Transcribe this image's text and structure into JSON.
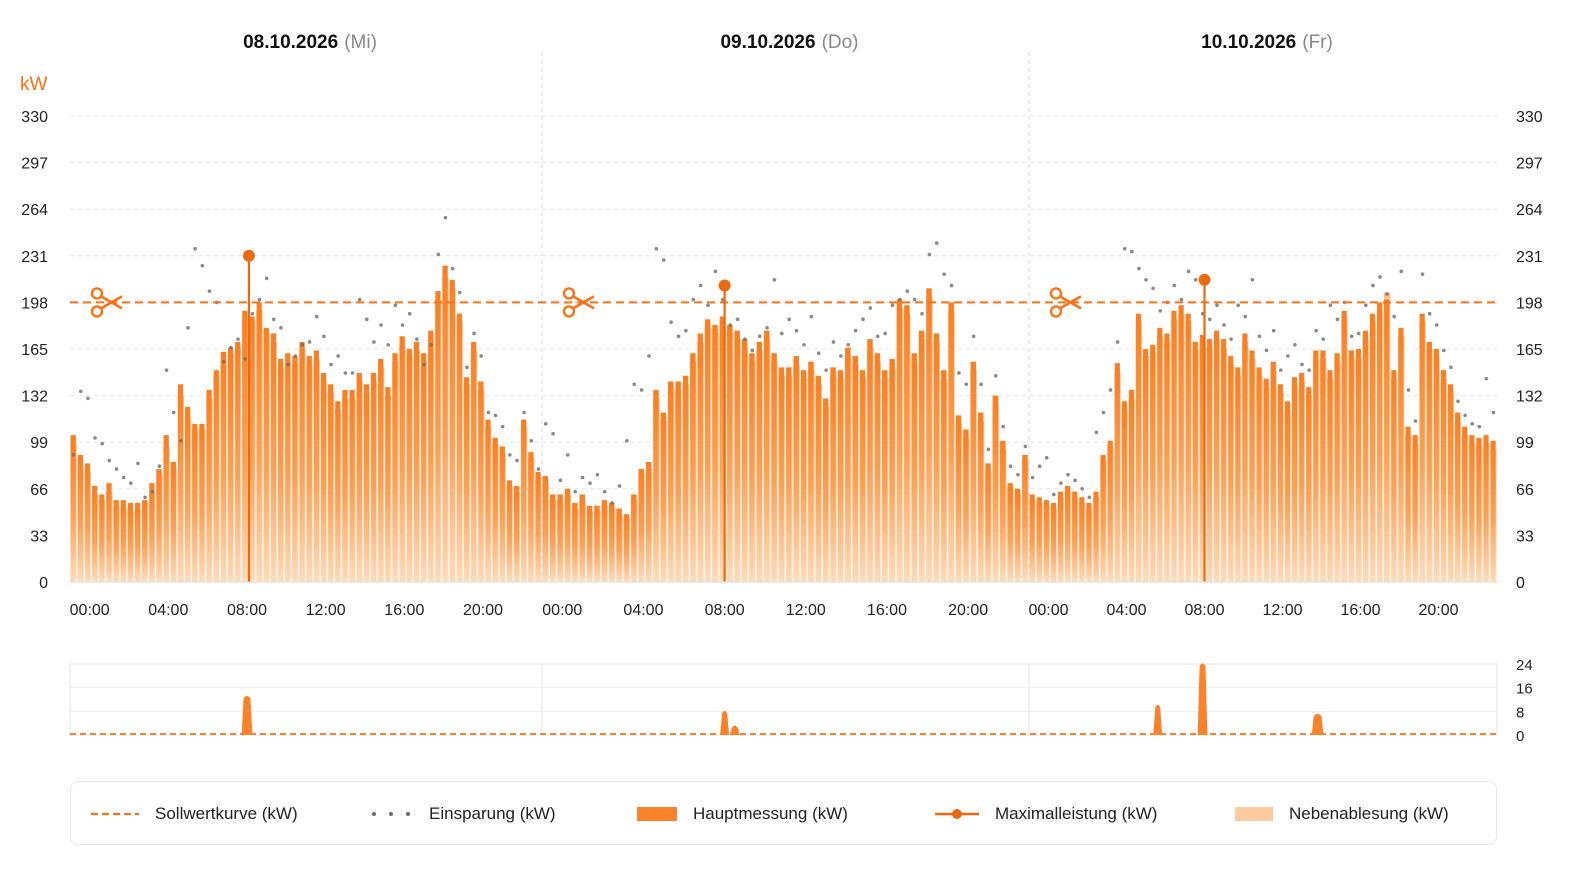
{
  "chart_data": {
    "type": "bar",
    "unit_label": "kW",
    "ylim": [
      0,
      330
    ],
    "y_ticks": [
      0,
      33,
      66,
      99,
      132,
      165,
      198,
      231,
      264,
      297,
      330
    ],
    "x_tick_labels": [
      "00:00",
      "04:00",
      "08:00",
      "12:00",
      "16:00",
      "20:00"
    ],
    "days": [
      {
        "date": "08.10.2026",
        "weekday": "(Mi)",
        "hauptmessung": [
          104,
          90,
          84,
          68,
          62,
          70,
          58,
          58,
          56,
          56,
          58,
          70,
          80,
          104,
          85,
          140,
          124,
          112,
          112,
          136,
          150,
          163,
          166,
          170,
          192,
          188,
          198,
          180,
          176,
          158,
          162,
          160,
          170,
          160,
          164,
          148,
          140,
          128,
          136,
          136,
          148,
          140,
          148,
          158,
          138,
          162,
          174,
          165,
          170,
          162,
          178,
          206,
          224,
          214,
          190,
          145,
          170,
          142,
          115,
          102,
          96,
          72,
          68,
          115,
          92,
          78
        ],
        "nebenablesung": [
          98,
          82,
          78,
          62,
          58,
          64,
          54,
          52,
          50,
          52,
          56,
          64,
          76,
          96,
          80,
          132,
          116,
          108,
          108,
          130,
          146,
          158,
          162,
          166,
          186,
          184,
          192,
          176,
          170,
          152,
          156,
          154,
          164,
          154,
          158,
          142,
          134,
          122,
          130,
          130,
          142,
          134,
          142,
          152,
          132,
          156,
          168,
          160,
          164,
          156,
          172,
          200,
          216,
          208,
          184,
          140,
          164,
          136,
          110,
          98,
          92,
          68,
          64,
          110,
          88,
          74
        ],
        "einsparung": [
          90,
          135,
          130,
          102,
          98,
          86,
          80,
          74,
          70,
          84,
          60,
          64,
          82,
          150,
          120,
          100,
          180,
          236,
          224,
          206,
          198,
          156,
          166,
          172,
          158,
          190,
          200,
          215,
          186,
          180,
          154,
          160,
          168,
          170,
          188,
          174,
          154,
          160,
          148,
          148,
          200,
          186,
          170,
          182,
          168,
          196,
          182,
          190,
          172,
          154,
          168,
          232,
          258,
          222,
          205,
          152,
          176,
          160,
          120,
          118,
          110,
          90,
          86,
          120,
          100,
          80
        ],
        "max": {
          "hour": 8.1,
          "value": 231
        }
      },
      {
        "date": "09.10.2026",
        "weekday": "(Do)",
        "hauptmessung": [
          75,
          62,
          62,
          66,
          56,
          62,
          54,
          54,
          58,
          56,
          52,
          48,
          62,
          80,
          85,
          136,
          120,
          142,
          142,
          146,
          162,
          176,
          186,
          182,
          188,
          182,
          178,
          172,
          162,
          170,
          178,
          162,
          152,
          152,
          160,
          150,
          156,
          146,
          130,
          152,
          150,
          166,
          160,
          150,
          172,
          162,
          150,
          158,
          200,
          196,
          162,
          178,
          208,
          176,
          150,
          198,
          118,
          108,
          156,
          120,
          84,
          132,
          100,
          70,
          66,
          90
        ],
        "nebenablesung": [
          70,
          58,
          58,
          62,
          52,
          58,
          50,
          50,
          54,
          52,
          48,
          45,
          58,
          76,
          80,
          130,
          114,
          136,
          136,
          140,
          156,
          170,
          180,
          176,
          182,
          176,
          172,
          166,
          156,
          164,
          172,
          156,
          146,
          146,
          154,
          144,
          150,
          140,
          124,
          146,
          144,
          160,
          154,
          144,
          166,
          156,
          144,
          152,
          194,
          190,
          156,
          172,
          202,
          170,
          144,
          192,
          112,
          102,
          150,
          114,
          78,
          126,
          94,
          66,
          62,
          86
        ],
        "einsparung": [
          112,
          105,
          72,
          90,
          64,
          74,
          70,
          76,
          64,
          56,
          68,
          100,
          140,
          136,
          160,
          236,
          228,
          184,
          174,
          178,
          200,
          210,
          196,
          220,
          200,
          182,
          186,
          172,
          164,
          174,
          180,
          214,
          176,
          186,
          178,
          168,
          188,
          162,
          150,
          170,
          160,
          168,
          178,
          186,
          194,
          174,
          176,
          196,
          200,
          206,
          200,
          190,
          232,
          240,
          218,
          210,
          148,
          140,
          174,
          140,
          94,
          146,
          110,
          82,
          76,
          96
        ],
        "max": {
          "hour": 8.0,
          "value": 210
        }
      },
      {
        "date": "10.10.2026",
        "weekday": "(Fr)",
        "hauptmessung": [
          62,
          60,
          58,
          56,
          64,
          68,
          64,
          60,
          56,
          64,
          90,
          100,
          155,
          128,
          136,
          190,
          165,
          168,
          180,
          176,
          192,
          196,
          190,
          170,
          175,
          172,
          178,
          172,
          160,
          152,
          176,
          164,
          152,
          144,
          156,
          140,
          128,
          145,
          148,
          138,
          164,
          164,
          150,
          162,
          192,
          164,
          165,
          178,
          190,
          198,
          200,
          150,
          180,
          110,
          104,
          190,
          170,
          165,
          150,
          140,
          120,
          110,
          104,
          102,
          104,
          100
        ],
        "nebenablesung": [
          58,
          56,
          54,
          52,
          60,
          64,
          60,
          56,
          52,
          60,
          86,
          96,
          148,
          122,
          130,
          184,
          160,
          162,
          174,
          170,
          186,
          190,
          184,
          164,
          169,
          166,
          172,
          166,
          154,
          146,
          170,
          158,
          146,
          138,
          150,
          134,
          122,
          139,
          142,
          132,
          158,
          158,
          144,
          156,
          186,
          158,
          159,
          172,
          184,
          192,
          205,
          144,
          174,
          104,
          98,
          184,
          164,
          159,
          144,
          134,
          114,
          104,
          98,
          96,
          98,
          94
        ],
        "einsparung": [
          74,
          82,
          88,
          62,
          70,
          76,
          72,
          66,
          60,
          106,
          120,
          136,
          170,
          236,
          234,
          222,
          214,
          208,
          192,
          198,
          210,
          200,
          220,
          214,
          190,
          186,
          196,
          182,
          172,
          196,
          188,
          214,
          174,
          164,
          178,
          150,
          160,
          168,
          154,
          150,
          178,
          172,
          196,
          186,
          198,
          174,
          176,
          196,
          210,
          216,
          204,
          188,
          220,
          136,
          114,
          218,
          190,
          182,
          164,
          152,
          128,
          118,
          112,
          110,
          144,
          120
        ],
        "max": {
          "hour": 8.0,
          "value": 214
        }
      }
    ],
    "sollwertkurve": 198,
    "sub_chart": {
      "ylim": [
        0,
        24
      ],
      "y_ticks": [
        0,
        8,
        16,
        24
      ],
      "peaks": [
        {
          "day": 0,
          "hour": 8.0,
          "width": 0.35,
          "value": 13
        },
        {
          "day": 1,
          "hour": 8.0,
          "width": 0.25,
          "value": 8
        },
        {
          "day": 1,
          "hour": 8.5,
          "width": 0.3,
          "value": 3
        },
        {
          "day": 2,
          "hour": 5.6,
          "width": 0.25,
          "value": 10
        },
        {
          "day": 2,
          "hour": 7.9,
          "width": 0.3,
          "value": 24
        },
        {
          "day": 2,
          "hour": 13.8,
          "width": 0.4,
          "value": 7
        }
      ]
    },
    "legend": {
      "sollwertkurve": "Sollwertkurve (kW)",
      "einsparung": "Einsparung (kW)",
      "hauptmessung": "Hauptmessung (kW)",
      "maximalleistung": "Maximalleistung (kW)",
      "nebenablesung": "Nebenablesung (kW)"
    },
    "legend_placement": "bottom",
    "colors": {
      "accent": "#F97316",
      "bar": "#F9822A",
      "bar_light": "#FBCB9E",
      "dots": "#6B6B6B",
      "grid": "#E4E4E4",
      "max_line": "#EA6A10"
    }
  }
}
